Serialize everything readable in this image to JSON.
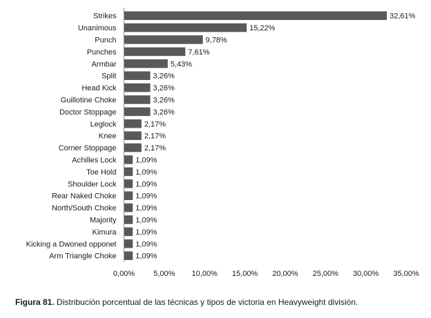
{
  "chart_data": {
    "type": "bar",
    "orientation": "horizontal",
    "categories": [
      "Strikes",
      "Unanimous",
      "Punch",
      "Punches",
      "Armbar",
      "Split",
      "Head Kick",
      "Guillotine Choke",
      "Doctor  Stoppage",
      "Leglock",
      "Knee",
      "Corner Stoppage",
      "Achilles Lock",
      "Toe Hold",
      "Shoulder Lock",
      "Rear Naked Choke",
      "North/South Choke",
      "Majority",
      "Kimura",
      "Kicking a Dwoned opponet",
      "Arm Triangle Choke"
    ],
    "values": [
      32.61,
      15.22,
      9.78,
      7.61,
      5.43,
      3.26,
      3.26,
      3.26,
      3.26,
      2.17,
      2.17,
      2.17,
      1.09,
      1.09,
      1.09,
      1.09,
      1.09,
      1.09,
      1.09,
      1.09,
      1.09
    ],
    "value_labels": [
      "32,61%",
      "15,22%",
      "9,78%",
      "7,61%",
      "5,43%",
      "3,26%",
      "3,26%",
      "3,26%",
      "3,26%",
      "2,17%",
      "2,17%",
      "2,17%",
      "1,09%",
      "1,09%",
      "1,09%",
      "1,09%",
      "1,09%",
      "1,09%",
      "1,09%",
      "1,09%",
      "1,09%"
    ],
    "x_ticks": [
      "0,00%",
      "5,00%",
      "10,00%",
      "15,00%",
      "20,00%",
      "25,00%",
      "30,00%",
      "35,00%"
    ],
    "xlim": [
      0,
      35
    ],
    "grid": false,
    "bar_color": "#595959"
  },
  "caption": {
    "label": "Figura 81.",
    "text": " Distribución porcentual de las técnicas y tipos de victoria en Heavyweight división."
  }
}
